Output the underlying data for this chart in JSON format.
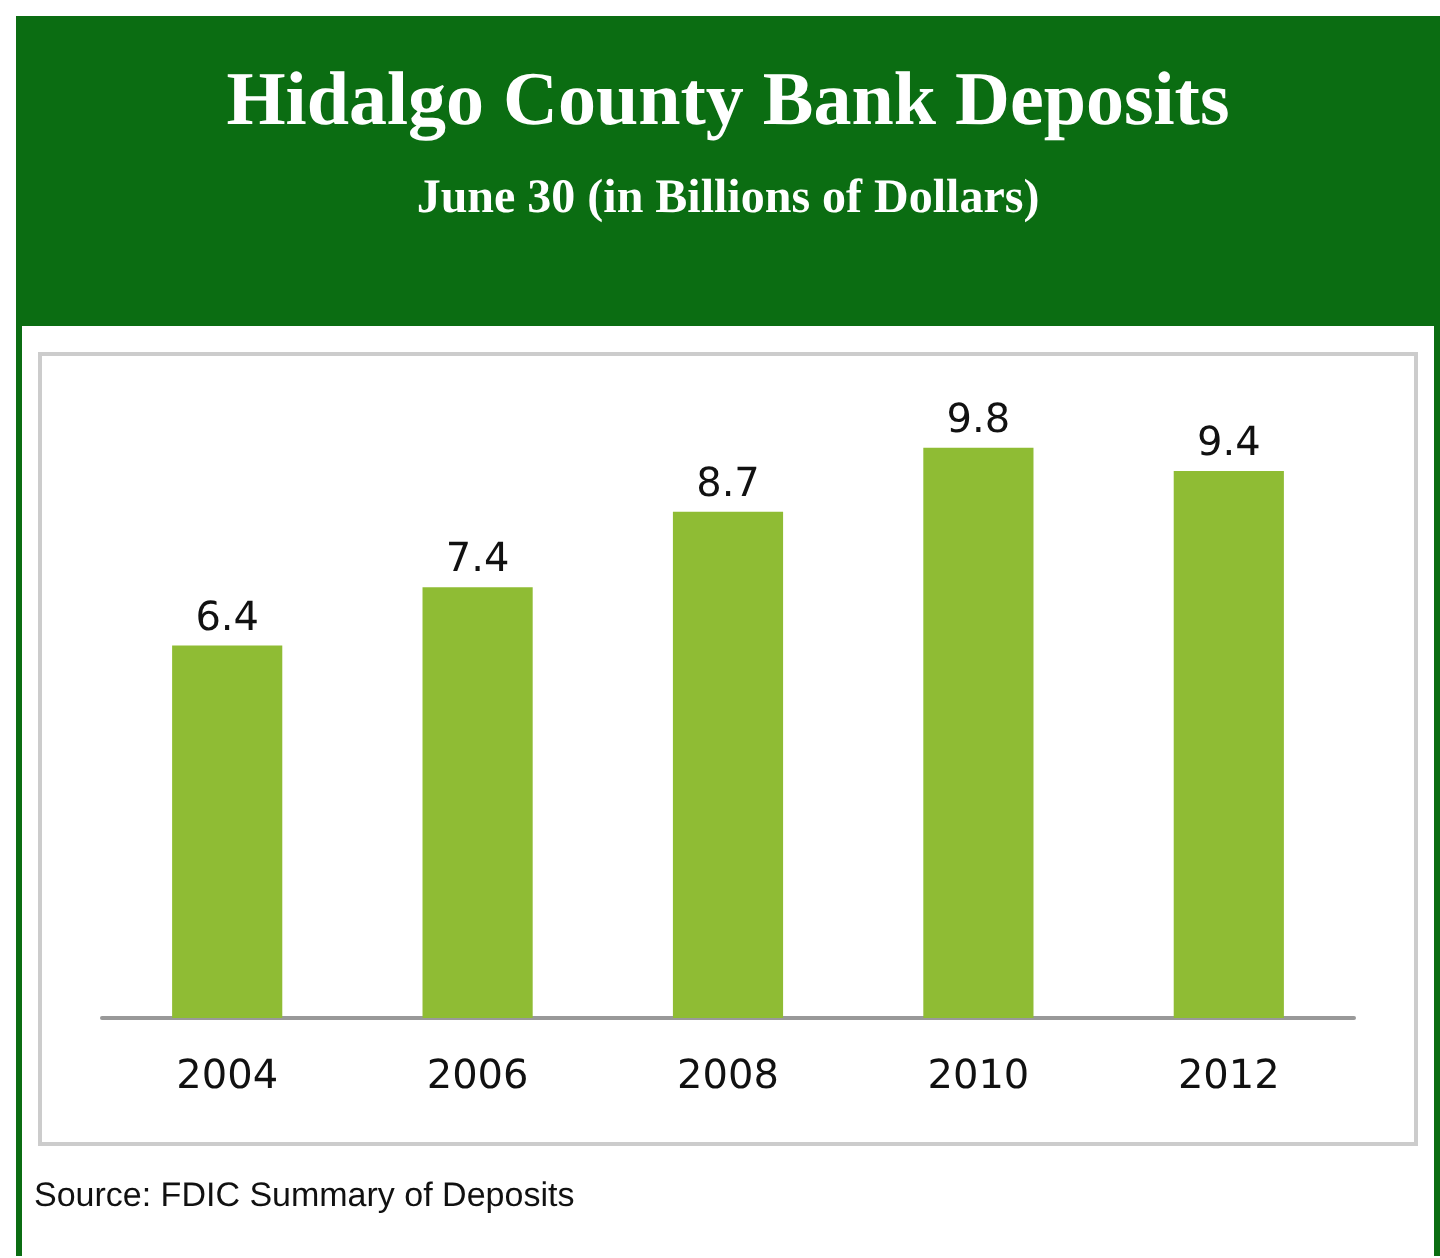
{
  "chart_data": {
    "type": "bar",
    "title": "Hidalgo County Bank Deposits",
    "subtitle": "June 30 (in Billions of Dollars)",
    "categories": [
      "2004",
      "2006",
      "2008",
      "2010",
      "2012"
    ],
    "values": [
      6.4,
      7.4,
      8.7,
      9.8,
      9.4
    ],
    "color": "#8fbc34",
    "data_labels": true,
    "annotations": [
      "Source: FDIC Summary of Deposits"
    ]
  }
}
